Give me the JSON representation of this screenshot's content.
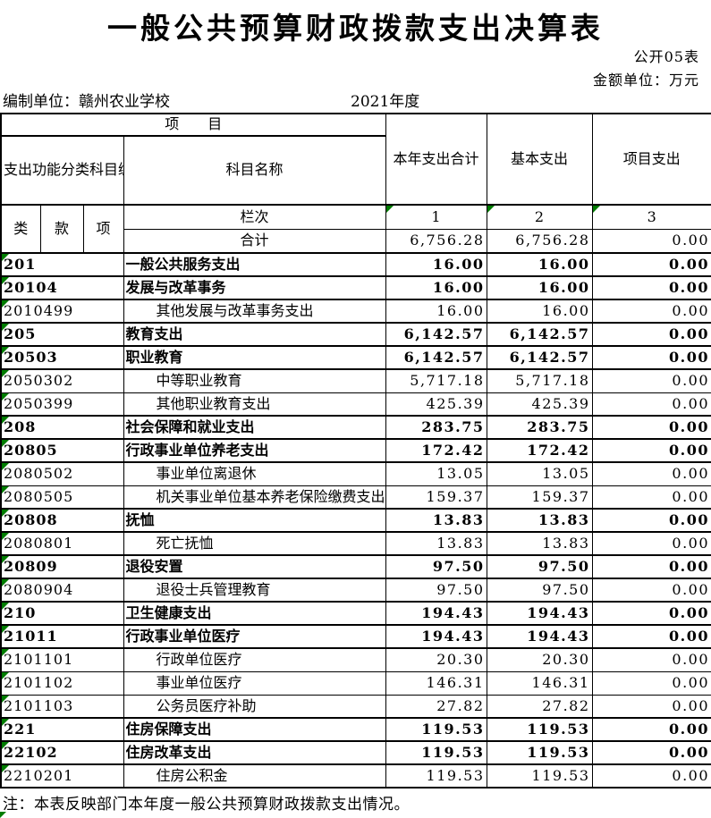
{
  "page": {
    "title": "一般公共预算财政拨款支出决算表",
    "doc_label": "公开05表",
    "unit_label": "金额单位：万元",
    "prepared_by": "编制单位：赣州农业学校",
    "year": "2021年度",
    "note": "注：本表反映部门本年度一般公共预算财政拨款支出情况。"
  },
  "icons": {
    "error_triangle": "excel-green-corner-indicator",
    "error_triangle_color": "#007c00"
  },
  "table": {
    "headers": {
      "project_group": "项　　目",
      "func_code": "支出功能分类科目编码",
      "subject_name": "科目名称",
      "current_year_total": "本年支出合计",
      "basic_expenditure": "基本支出",
      "project_expenditure": "项目支出",
      "class": "类",
      "section": "款",
      "item": "项",
      "column_index_label": "栏次",
      "col_numbers": [
        "1",
        "2",
        "3"
      ],
      "total_label": "合计"
    },
    "total_row": {
      "values": [
        "6,756.28",
        "6,756.28",
        "0.00"
      ]
    },
    "rows": [
      {
        "code": "201",
        "name": "一般公共服务支出",
        "values": [
          "16.00",
          "16.00",
          "0.00"
        ],
        "bold": true
      },
      {
        "code": "20104",
        "name": "发展与改革事务",
        "values": [
          "16.00",
          "16.00",
          "0.00"
        ],
        "bold": true
      },
      {
        "code": "2010499",
        "name": "其他发展与改革事务支出",
        "values": [
          "16.00",
          "16.00",
          "0.00"
        ],
        "bold": false
      },
      {
        "code": "205",
        "name": "教育支出",
        "values": [
          "6,142.57",
          "6,142.57",
          "0.00"
        ],
        "bold": true
      },
      {
        "code": "20503",
        "name": "职业教育",
        "values": [
          "6,142.57",
          "6,142.57",
          "0.00"
        ],
        "bold": true
      },
      {
        "code": "2050302",
        "name": "中等职业教育",
        "values": [
          "5,717.18",
          "5,717.18",
          "0.00"
        ],
        "bold": false
      },
      {
        "code": "2050399",
        "name": "其他职业教育支出",
        "values": [
          "425.39",
          "425.39",
          "0.00"
        ],
        "bold": false
      },
      {
        "code": "208",
        "name": "社会保障和就业支出",
        "values": [
          "283.75",
          "283.75",
          "0.00"
        ],
        "bold": true
      },
      {
        "code": "20805",
        "name": "行政事业单位养老支出",
        "values": [
          "172.42",
          "172.42",
          "0.00"
        ],
        "bold": true
      },
      {
        "code": "2080502",
        "name": "事业单位离退休",
        "values": [
          "13.05",
          "13.05",
          "0.00"
        ],
        "bold": false
      },
      {
        "code": "2080505",
        "name": "机关事业单位基本养老保险缴费支出",
        "values": [
          "159.37",
          "159.37",
          "0.00"
        ],
        "bold": false
      },
      {
        "code": "20808",
        "name": "抚恤",
        "values": [
          "13.83",
          "13.83",
          "0.00"
        ],
        "bold": true
      },
      {
        "code": "2080801",
        "name": "死亡抚恤",
        "values": [
          "13.83",
          "13.83",
          "0.00"
        ],
        "bold": false
      },
      {
        "code": "20809",
        "name": "退役安置",
        "values": [
          "97.50",
          "97.50",
          "0.00"
        ],
        "bold": true
      },
      {
        "code": "2080904",
        "name": "退役士兵管理教育",
        "values": [
          "97.50",
          "97.50",
          "0.00"
        ],
        "bold": false
      },
      {
        "code": "210",
        "name": "卫生健康支出",
        "values": [
          "194.43",
          "194.43",
          "0.00"
        ],
        "bold": true
      },
      {
        "code": "21011",
        "name": "行政事业单位医疗",
        "values": [
          "194.43",
          "194.43",
          "0.00"
        ],
        "bold": true
      },
      {
        "code": "2101101",
        "name": "行政单位医疗",
        "values": [
          "20.30",
          "20.30",
          "0.00"
        ],
        "bold": false
      },
      {
        "code": "2101102",
        "name": "事业单位医疗",
        "values": [
          "146.31",
          "146.31",
          "0.00"
        ],
        "bold": false
      },
      {
        "code": "2101103",
        "name": "公务员医疗补助",
        "values": [
          "27.82",
          "27.82",
          "0.00"
        ],
        "bold": false
      },
      {
        "code": "221",
        "name": "住房保障支出",
        "values": [
          "119.53",
          "119.53",
          "0.00"
        ],
        "bold": true
      },
      {
        "code": "22102",
        "name": "住房改革支出",
        "values": [
          "119.53",
          "119.53",
          "0.00"
        ],
        "bold": true
      },
      {
        "code": "2210201",
        "name": "住房公积金",
        "values": [
          "119.53",
          "119.53",
          "0.00"
        ],
        "bold": false
      }
    ]
  }
}
